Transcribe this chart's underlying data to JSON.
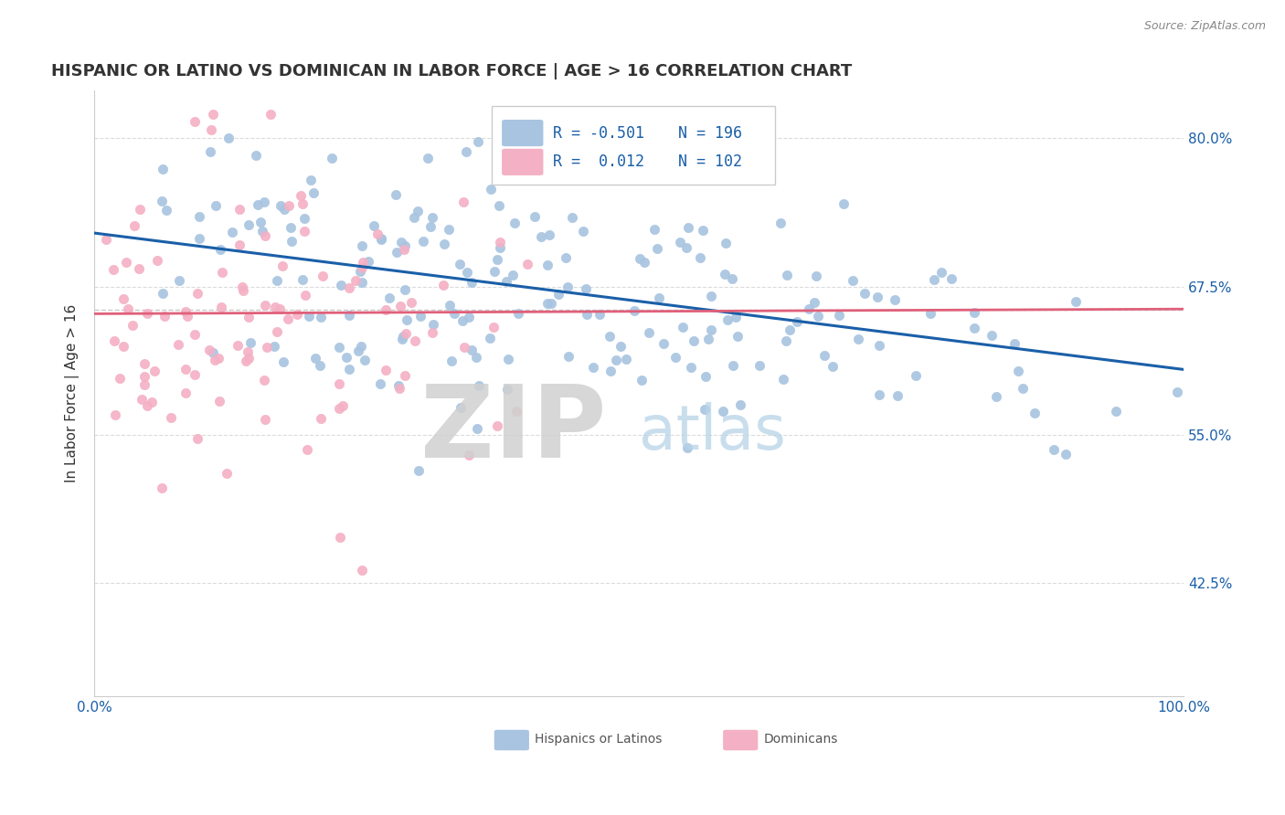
{
  "title": "HISPANIC OR LATINO VS DOMINICAN IN LABOR FORCE | AGE > 16 CORRELATION CHART",
  "source_text": "Source: ZipAtlas.com",
  "ylabel": "In Labor Force | Age > 16",
  "xlim": [
    0.0,
    1.0
  ],
  "ylim": [
    0.33,
    0.84
  ],
  "yticks": [
    0.425,
    0.55,
    0.675,
    0.8
  ],
  "ytick_labels": [
    "42.5%",
    "55.0%",
    "67.5%",
    "80.0%"
  ],
  "xticks": [
    0.0,
    0.1,
    0.2,
    0.3,
    0.4,
    0.5,
    0.6,
    0.7,
    0.8,
    0.9,
    1.0
  ],
  "xtick_labels": [
    "0.0%",
    "",
    "",
    "",
    "",
    "",
    "",
    "",
    "",
    "",
    "100.0%"
  ],
  "blue_color": "#a8c4e0",
  "blue_line_color": "#1a5fa8",
  "pink_color": "#f4b0c4",
  "pink_line_color": "#e0607a",
  "legend_R1": "-0.501",
  "legend_N1": "196",
  "legend_R2": "0.012",
  "legend_N2": "102",
  "series1_label": "Hispanics or Latinos",
  "series2_label": "Dominicans",
  "blue_slope": -0.115,
  "blue_intercept": 0.72,
  "pink_slope": 0.004,
  "pink_intercept": 0.652,
  "seed": 42,
  "n_blue": 196,
  "n_pink": 102,
  "dashed_line_y": 0.655,
  "background_color": "#ffffff",
  "grid_color": "#d8d8d8",
  "title_color": "#333333",
  "axis_label_color": "#1a5fa8",
  "right_axis_label_color": "#1a5fa8",
  "marker_size": 55
}
